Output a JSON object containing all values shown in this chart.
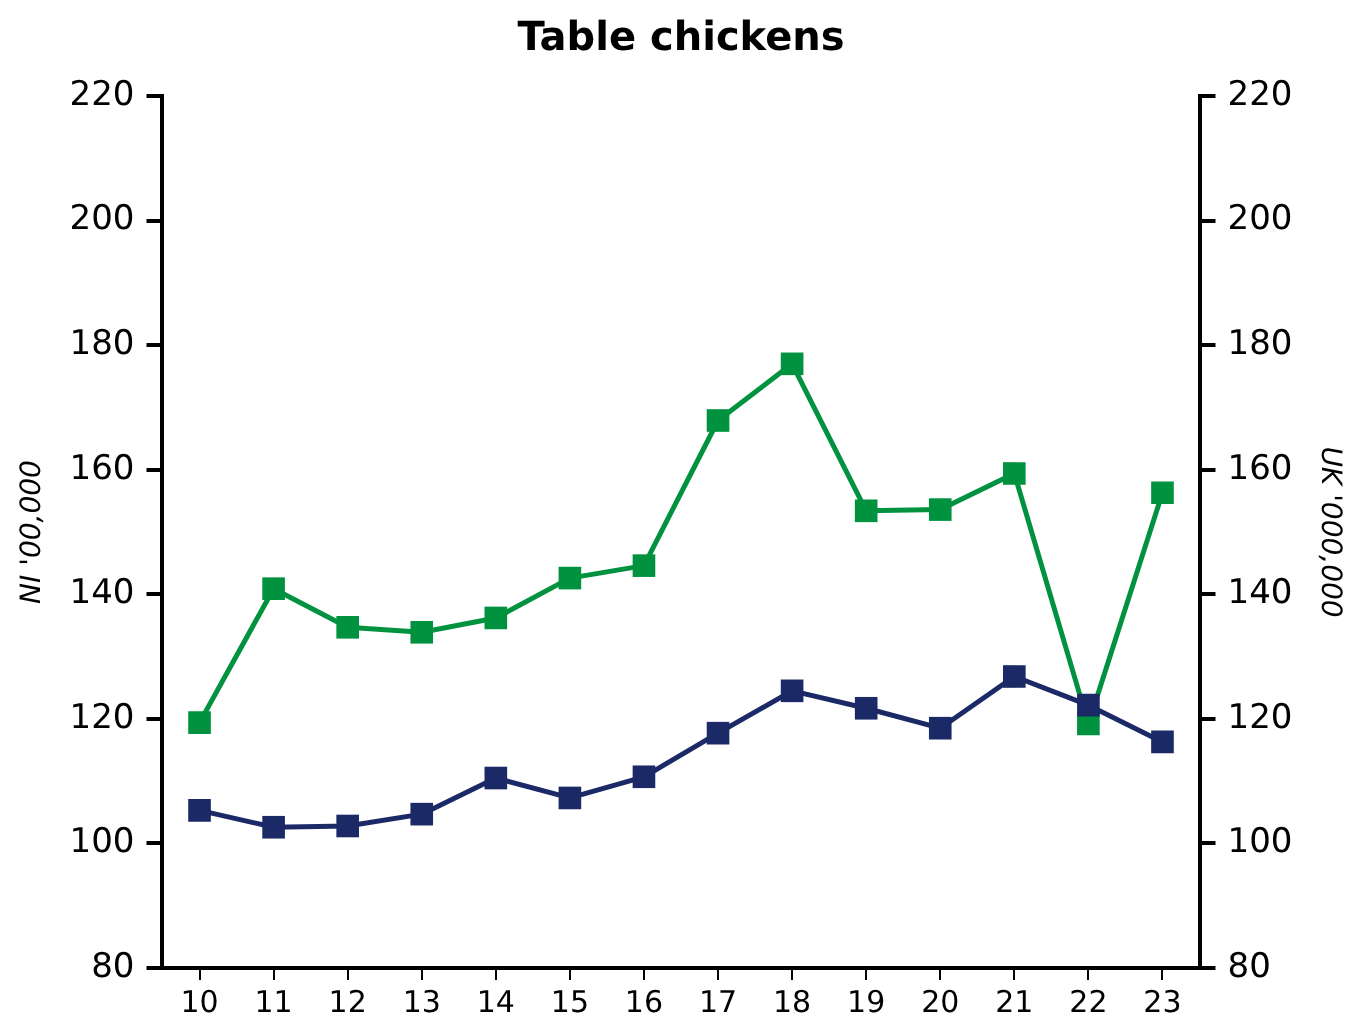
{
  "chart_data": {
    "type": "line",
    "title": "Table chickens",
    "ylabel": "NI '00,000",
    "y2label": "UK '000,000",
    "categories": [
      "10",
      "11",
      "12",
      "13",
      "14",
      "15",
      "16",
      "17",
      "18",
      "19",
      "20",
      "21",
      "22",
      "23"
    ],
    "series": [
      {
        "color": "#1b2a66",
        "values": [
          105.3,
          102.6,
          102.8,
          104.7,
          110.5,
          107.3,
          110.7,
          117.7,
          124.5,
          121.7,
          118.5,
          126.8,
          122.2,
          116.3
        ]
      },
      {
        "color": "#00923f",
        "values": [
          119.4,
          140.9,
          134.7,
          133.9,
          136.2,
          142.6,
          144.6,
          167.9,
          177,
          153.4,
          153.6,
          159.4,
          119.2,
          156.3
        ]
      }
    ],
    "ylim": [
      80,
      220
    ],
    "yticks": [
      80,
      100,
      120,
      140,
      160,
      180,
      200,
      220
    ],
    "y2lim": [
      80,
      220
    ],
    "y2ticks": [
      80,
      100,
      120,
      140,
      160,
      180,
      200,
      220
    ],
    "marker": "square",
    "line_style": "solid",
    "grid": false,
    "legend": false
  }
}
